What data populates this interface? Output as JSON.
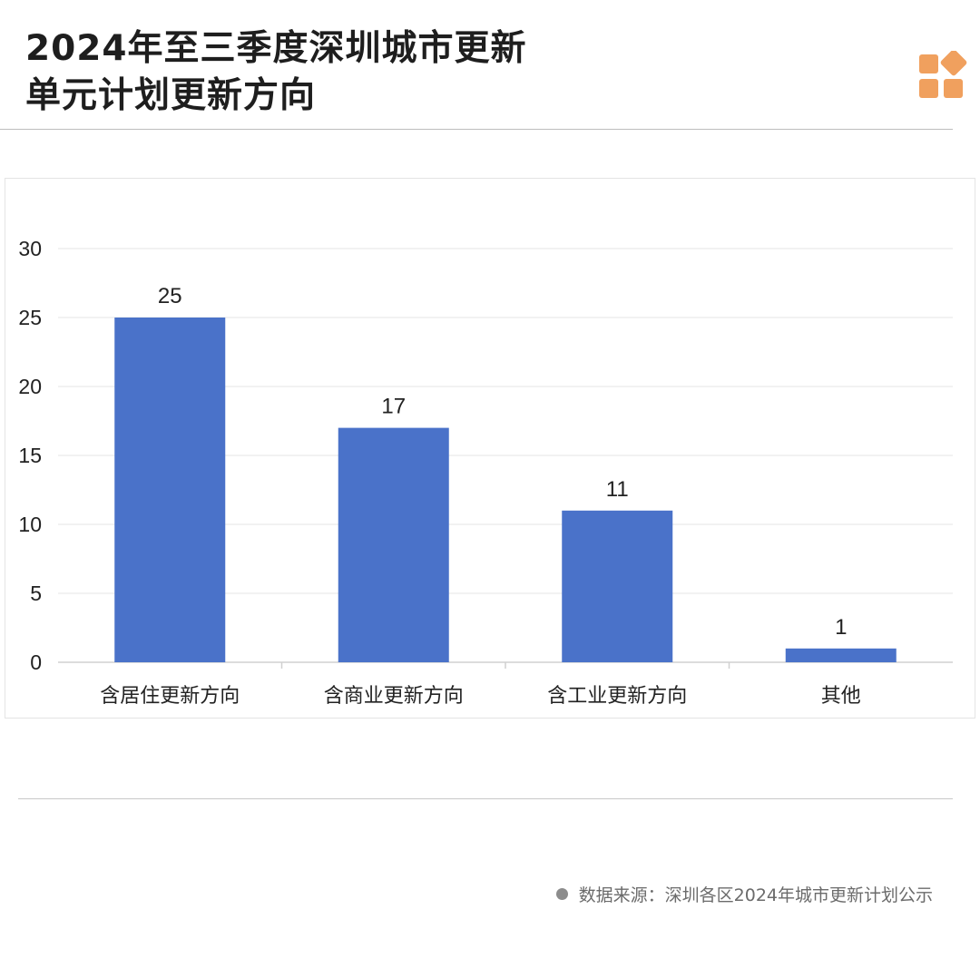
{
  "header": {
    "title_line1": "2024年至三季度深圳城市更新",
    "title_line2": "单元计划更新方向"
  },
  "logo": {
    "icon": "brand-squares-icon",
    "color": "#F0A05E"
  },
  "source": {
    "text": "数据来源：深圳各区2024年城市更新计划公示"
  },
  "colors": {
    "bar": "#4A72C9",
    "grid": "#E6E6E6",
    "axis_text": "#222222"
  },
  "chart_data": {
    "type": "bar",
    "categories": [
      "含居住更新方向",
      "含商业更新方向",
      "含工业更新方向",
      "其他"
    ],
    "values": [
      25,
      17,
      11,
      1
    ],
    "data_labels": [
      "25",
      "17",
      "11",
      "1"
    ],
    "yticks": [
      0,
      5,
      10,
      15,
      20,
      25,
      30
    ],
    "ylim": [
      0,
      30
    ],
    "grid": true,
    "legend": "none",
    "title": "",
    "xlabel": "",
    "ylabel": ""
  }
}
